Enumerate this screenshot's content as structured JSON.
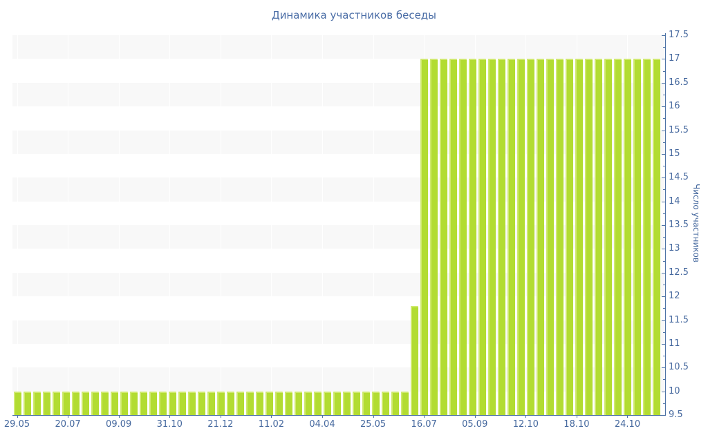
{
  "title": "Динамика участников беседы",
  "colors": {
    "bar": "#b2dc32",
    "bar_highlight": "#cfe96e",
    "axis_line": "#4e74a6",
    "tick_label": "#45689e",
    "title_text": "#4a6da6",
    "band_gray": "#f8f8f8",
    "background": "#ffffff"
  },
  "chart_data": {
    "type": "bar",
    "title": "Динамика участников беседы",
    "xlabel": "",
    "ylabel": "Число участников",
    "ylim": [
      9.5,
      17.5
    ],
    "y_tick_step": 0.5,
    "y_minor_tick_step": 0.25,
    "y_axis_side": "right",
    "grid": "horizontal-bands",
    "legend": "none",
    "y_tick_labels": [
      "9.5",
      "10",
      "10.5",
      "11",
      "11.5",
      "12",
      "12.5",
      "13",
      "13.5",
      "14",
      "14.5",
      "15",
      "15.5",
      "16",
      "16.5",
      "17",
      "17.5"
    ],
    "x_tick_labels": [
      "29.05",
      "20.07",
      "09.09",
      "31.10",
      "21.12",
      "11.02",
      "04.04",
      "25.05",
      "16.07",
      "05.09",
      "12.10",
      "18.10",
      "24.10"
    ],
    "bar_count": 67,
    "values": [
      10,
      10,
      10,
      10,
      10,
      10,
      10,
      10,
      10,
      10,
      10,
      10,
      10,
      10,
      10,
      10,
      10,
      10,
      10,
      10,
      10,
      10,
      10,
      10,
      10,
      10,
      10,
      10,
      10,
      10,
      10,
      10,
      10,
      10,
      10,
      10,
      10,
      10,
      10,
      10,
      10,
      11.8,
      17,
      17,
      17,
      17,
      17,
      17,
      17,
      17,
      17,
      17,
      17,
      17,
      17,
      17,
      17,
      17,
      17,
      17,
      17,
      17,
      17,
      17,
      17,
      17,
      17
    ]
  }
}
